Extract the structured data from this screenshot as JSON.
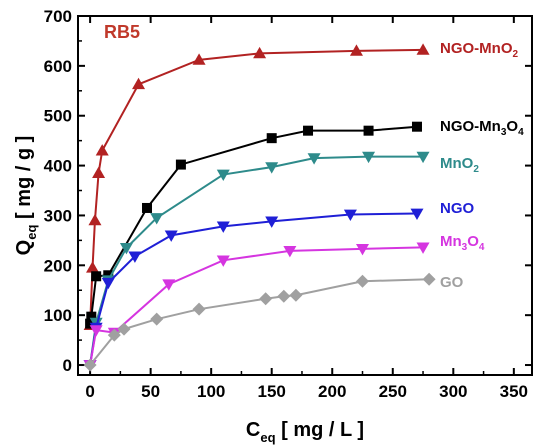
{
  "chart_data": {
    "type": "line",
    "title": "RB5",
    "title_color": "#c0392b",
    "xlabel": {
      "main": "C",
      "sub": "eq",
      "rest": "  [ mg / L ]"
    },
    "ylabel": {
      "main": "Q",
      "sub": "eq",
      "rest": "  [ mg / g ]"
    },
    "xlim": [
      -10,
      365
    ],
    "ylim": [
      -20,
      700
    ],
    "xticks": [
      0,
      50,
      100,
      150,
      200,
      250,
      300,
      350
    ],
    "yticks": [
      0,
      100,
      200,
      300,
      400,
      500,
      600,
      700
    ],
    "grid": false,
    "series": [
      {
        "name": "NGO-MnO2",
        "label_main": "NGO-MnO",
        "label_sub": "2",
        "label_rest": "",
        "color": "#b22222",
        "marker": "triangle-up",
        "x": [
          0,
          2,
          4,
          7,
          10,
          40,
          90,
          140,
          220,
          275
        ],
        "y": [
          80,
          195,
          290,
          385,
          430,
          563,
          612,
          625,
          630,
          632
        ]
      },
      {
        "name": "NGO-Mn3O4",
        "label_main": "NGO-Mn",
        "label_sub": "3",
        "label_rest": "O",
        "label_sub2": "4",
        "color": "#000000",
        "marker": "square",
        "x": [
          0,
          1,
          5,
          15,
          47,
          75,
          150,
          180,
          230,
          270
        ],
        "y": [
          83,
          97,
          178,
          180,
          315,
          402,
          455,
          470,
          470,
          478
        ]
      },
      {
        "name": "MnO2",
        "label_main": "MnO",
        "label_sub": "2",
        "label_rest": "",
        "color": "#2e8b8b",
        "marker": "triangle-down",
        "x": [
          0,
          5,
          15,
          30,
          55,
          110,
          150,
          185,
          230,
          275
        ],
        "y": [
          0,
          85,
          170,
          235,
          295,
          382,
          397,
          415,
          418,
          418
        ]
      },
      {
        "name": "NGO",
        "label_main": "NGO",
        "label_sub": "",
        "label_rest": "",
        "color": "#1f1fd6",
        "marker": "triangle-down",
        "x": [
          0,
          5,
          15,
          37,
          67,
          110,
          150,
          215,
          270
        ],
        "y": [
          0,
          75,
          165,
          218,
          260,
          278,
          288,
          302,
          304
        ]
      },
      {
        "name": "Mn3O4",
        "label_main": "Mn",
        "label_sub": "3",
        "label_rest": "O",
        "label_sub2": "4",
        "color": "#d535e0",
        "marker": "triangle-down",
        "x": [
          0,
          5,
          20,
          65,
          110,
          165,
          225,
          275
        ],
        "y": [
          0,
          70,
          65,
          162,
          210,
          229,
          233,
          236
        ]
      },
      {
        "name": "GO",
        "label_main": "GO",
        "label_sub": "",
        "label_rest": "",
        "color": "#a0a0a0",
        "marker": "diamond",
        "x": [
          0,
          20,
          28,
          55,
          90,
          145,
          160,
          170,
          225,
          280
        ],
        "y": [
          0,
          60,
          72,
          92,
          112,
          133,
          138,
          140,
          168,
          172
        ]
      }
    ]
  }
}
